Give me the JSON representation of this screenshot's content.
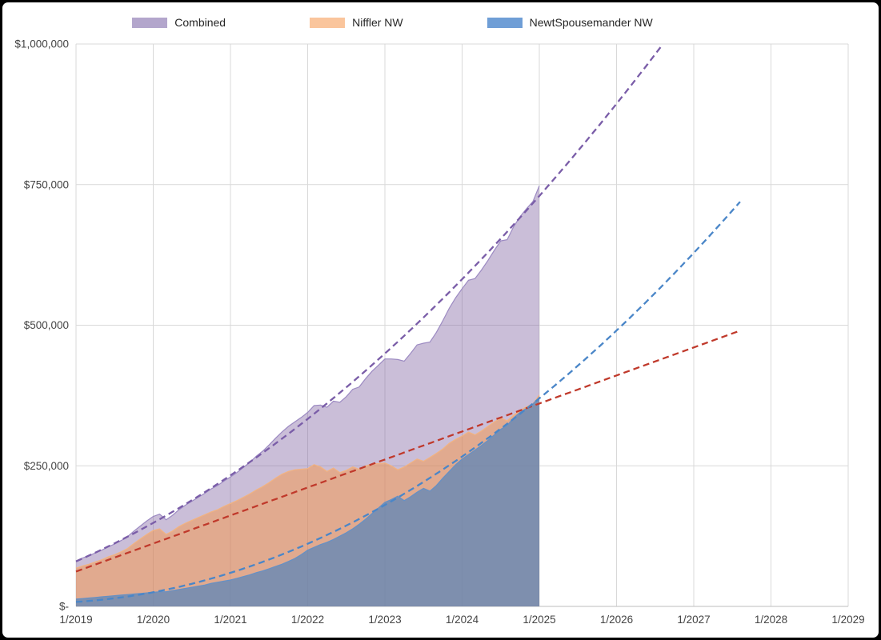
{
  "frame": {
    "background": "#000000",
    "canvas": "#ffffff"
  },
  "legend": {
    "items": [
      {
        "id": "combined",
        "label": "Combined",
        "swatch_color": "#b3a6cc"
      },
      {
        "id": "niffler",
        "label": "Niffler NW",
        "swatch_color": "#fac59c"
      },
      {
        "id": "newt",
        "label": "NewtSpousemander NW",
        "swatch_color": "#6f9ed6"
      }
    ]
  },
  "chart_data": {
    "type": "area",
    "title": "",
    "grid": true,
    "units": "USD thousands",
    "sampling": "monthly actuals from 1/2019 through 1/2025, dashed projections beyond",
    "x_axis": {
      "tick_labels": [
        "1/2019",
        "1/2020",
        "1/2021",
        "1/2022",
        "1/2023",
        "1/2024",
        "1/2025",
        "1/2026",
        "1/2027",
        "1/2028",
        "1/2029"
      ],
      "range_years": 10
    },
    "y_axis": {
      "tick_labels": [
        "$-",
        "$250,000",
        "$500,000",
        "$750,000",
        "$1,000,000"
      ],
      "tick_values_thousands": [
        0,
        250,
        500,
        750,
        1000
      ],
      "max_thousands": 1000
    },
    "series": [
      {
        "name": "Combined",
        "fill": "#8064a2",
        "fill_opacity": 0.42,
        "edge": "#9c8ac2",
        "values_thousands": [
          81,
          86,
          90,
          95,
          100,
          106,
          111,
          117,
          124,
          134,
          143,
          152,
          160,
          164,
          154,
          162,
          172,
          180,
          187,
          194,
          201,
          209,
          215,
          223,
          230,
          238,
          247,
          256,
          267,
          276,
          287,
          299,
          310,
          320,
          328,
          336,
          345,
          357,
          358,
          354,
          365,
          363,
          373,
          386,
          390,
          405,
          418,
          429,
          440,
          440,
          439,
          436,
          450,
          465,
          468,
          470,
          487,
          508,
          530,
          549,
          565,
          580,
          583,
          598,
          615,
          633,
          650,
          652,
          675,
          693,
          707,
          720,
          748
        ]
      },
      {
        "name": "Niffler NW",
        "fill": "#f79646",
        "fill_opacity": 0.5,
        "edge": "#f2b381",
        "values_thousands": [
          68,
          72,
          75,
          79,
          83,
          88,
          92,
          97,
          103,
          112,
          120,
          128,
          135,
          138,
          128,
          134,
          142,
          148,
          153,
          158,
          163,
          168,
          172,
          178,
          183,
          188,
          194,
          200,
          207,
          213,
          220,
          228,
          235,
          240,
          243,
          244,
          245,
          252,
          248,
          240,
          246,
          238,
          242,
          248,
          244,
          250,
          253,
          254,
          255,
          250,
          243,
          248,
          255,
          262,
          258,
          265,
          272,
          280,
          290,
          297,
          303,
          310,
          305,
          312,
          320,
          328,
          335,
          330,
          340,
          348,
          355,
          360,
          376
        ]
      },
      {
        "name": "NewtSpousemander NW",
        "fill": "#4f81bd",
        "fill_opacity": 0.68,
        "edge": "#6590c5",
        "values_thousands": [
          13,
          14,
          15,
          16,
          17,
          18,
          19,
          20,
          21,
          22,
          23,
          24,
          25,
          26,
          26,
          28,
          30,
          32,
          34,
          36,
          38,
          41,
          43,
          45,
          47,
          50,
          53,
          56,
          60,
          63,
          67,
          71,
          75,
          80,
          85,
          92,
          100,
          105,
          110,
          114,
          119,
          125,
          131,
          138,
          146,
          155,
          165,
          175,
          185,
          190,
          196,
          188,
          195,
          203,
          210,
          205,
          215,
          228,
          240,
          252,
          262,
          270,
          278,
          286,
          295,
          305,
          315,
          322,
          335,
          345,
          352,
          360,
          372
        ]
      }
    ],
    "trendlines": [
      {
        "name": "Combined trend",
        "color": "#7a5da8",
        "dash": "8 5",
        "model": "quadratic",
        "coeffs_thousands": [
          7.95,
          60.6,
          80
        ],
        "t_start": 0,
        "t_end": 7.8
      },
      {
        "name": "Niffler NW trend",
        "color": "#c0392b",
        "dash": "8 5",
        "model": "linear",
        "coeffs_thousands": [
          0,
          49.8,
          62
        ],
        "t_start": 0,
        "t_end": 8.6
      },
      {
        "name": "NewtSpousemander NW trend",
        "color": "#4a86c8",
        "dash": "8 5",
        "model": "quadratic",
        "coeffs_thousands": [
          8.62,
          8.6,
          8
        ],
        "t_start": 0,
        "t_end": 8.6
      }
    ]
  }
}
